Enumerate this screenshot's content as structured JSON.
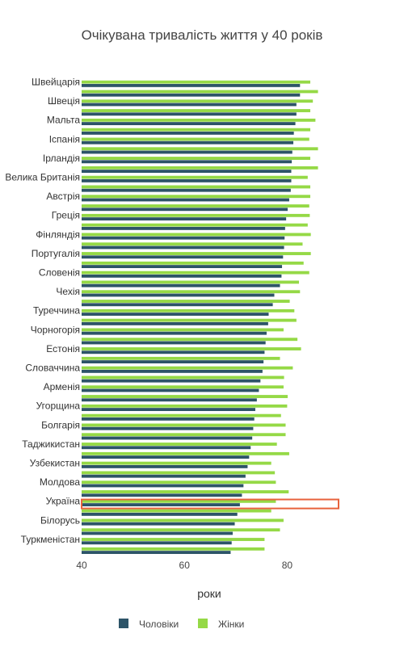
{
  "chart_data": {
    "type": "bar",
    "orientation": "horizontal",
    "title": "Очікувана тривалість життя у 40 років",
    "xlabel": "роки",
    "ylabel": "",
    "xlim": [
      40,
      90
    ],
    "xticks": [
      40,
      60,
      80
    ],
    "categories": [
      "Швейцарія",
      "",
      "Швеція",
      "",
      "Мальта",
      "",
      "Іспанія",
      "",
      "Ірландія",
      "",
      "Велика Британія",
      "",
      "Австрія",
      "",
      "Греція",
      "",
      "Фінляндія",
      "",
      "Португалія",
      "",
      "Словенія",
      "",
      "Чехія",
      "",
      "Туреччина",
      "",
      "Чорногорія",
      "",
      "Естонія",
      "",
      "Словаччина",
      "",
      "Арменія",
      "",
      "Угорщина",
      "",
      "Болгарія",
      "",
      "Таджикистан",
      "",
      "Узбекистан",
      "",
      "Молдова",
      "",
      "Україна",
      "",
      "Білорусь",
      "",
      "Туркменістан",
      ""
    ],
    "series": [
      {
        "name": "Чоловіки",
        "color": "#2d5468",
        "values": [
          82.5,
          82.5,
          81.8,
          81.8,
          81.6,
          81.3,
          81.2,
          81.0,
          80.9,
          80.8,
          80.8,
          80.7,
          80.4,
          80.1,
          79.8,
          79.6,
          79.5,
          79.4,
          79.2,
          79.0,
          78.9,
          78.6,
          77.5,
          77.2,
          76.4,
          76.3,
          76.0,
          75.8,
          75.6,
          75.4,
          75.2,
          74.8,
          74.5,
          74.1,
          73.8,
          73.6,
          73.4,
          73.2,
          72.9,
          72.6,
          72.3,
          71.9,
          71.5,
          71.2,
          70.8,
          70.3,
          69.8,
          69.4,
          69.2,
          69.0
        ]
      },
      {
        "name": "Жінки",
        "color": "#95d946",
        "values": [
          84.5,
          86.0,
          85.0,
          84.5,
          85.5,
          84.5,
          84.3,
          86.0,
          84.5,
          86.0,
          84.0,
          84.5,
          84.5,
          84.3,
          84.4,
          84.0,
          84.6,
          83.0,
          84.6,
          83.2,
          84.3,
          82.3,
          82.5,
          80.5,
          81.4,
          81.8,
          79.3,
          82.0,
          82.7,
          78.6,
          81.1,
          79.4,
          79.3,
          80.1,
          80.0,
          78.8,
          79.7,
          79.7,
          78.0,
          80.4,
          76.9,
          77.6,
          77.8,
          80.3,
          77.8,
          76.9,
          79.3,
          78.6,
          75.6,
          75.6
        ]
      }
    ],
    "highlight": {
      "category": "Україна",
      "color": "#e8623c"
    },
    "legend": {
      "placement": "bottom-center",
      "entries": [
        "Чоловіки",
        "Жінки"
      ]
    },
    "grid": false
  }
}
